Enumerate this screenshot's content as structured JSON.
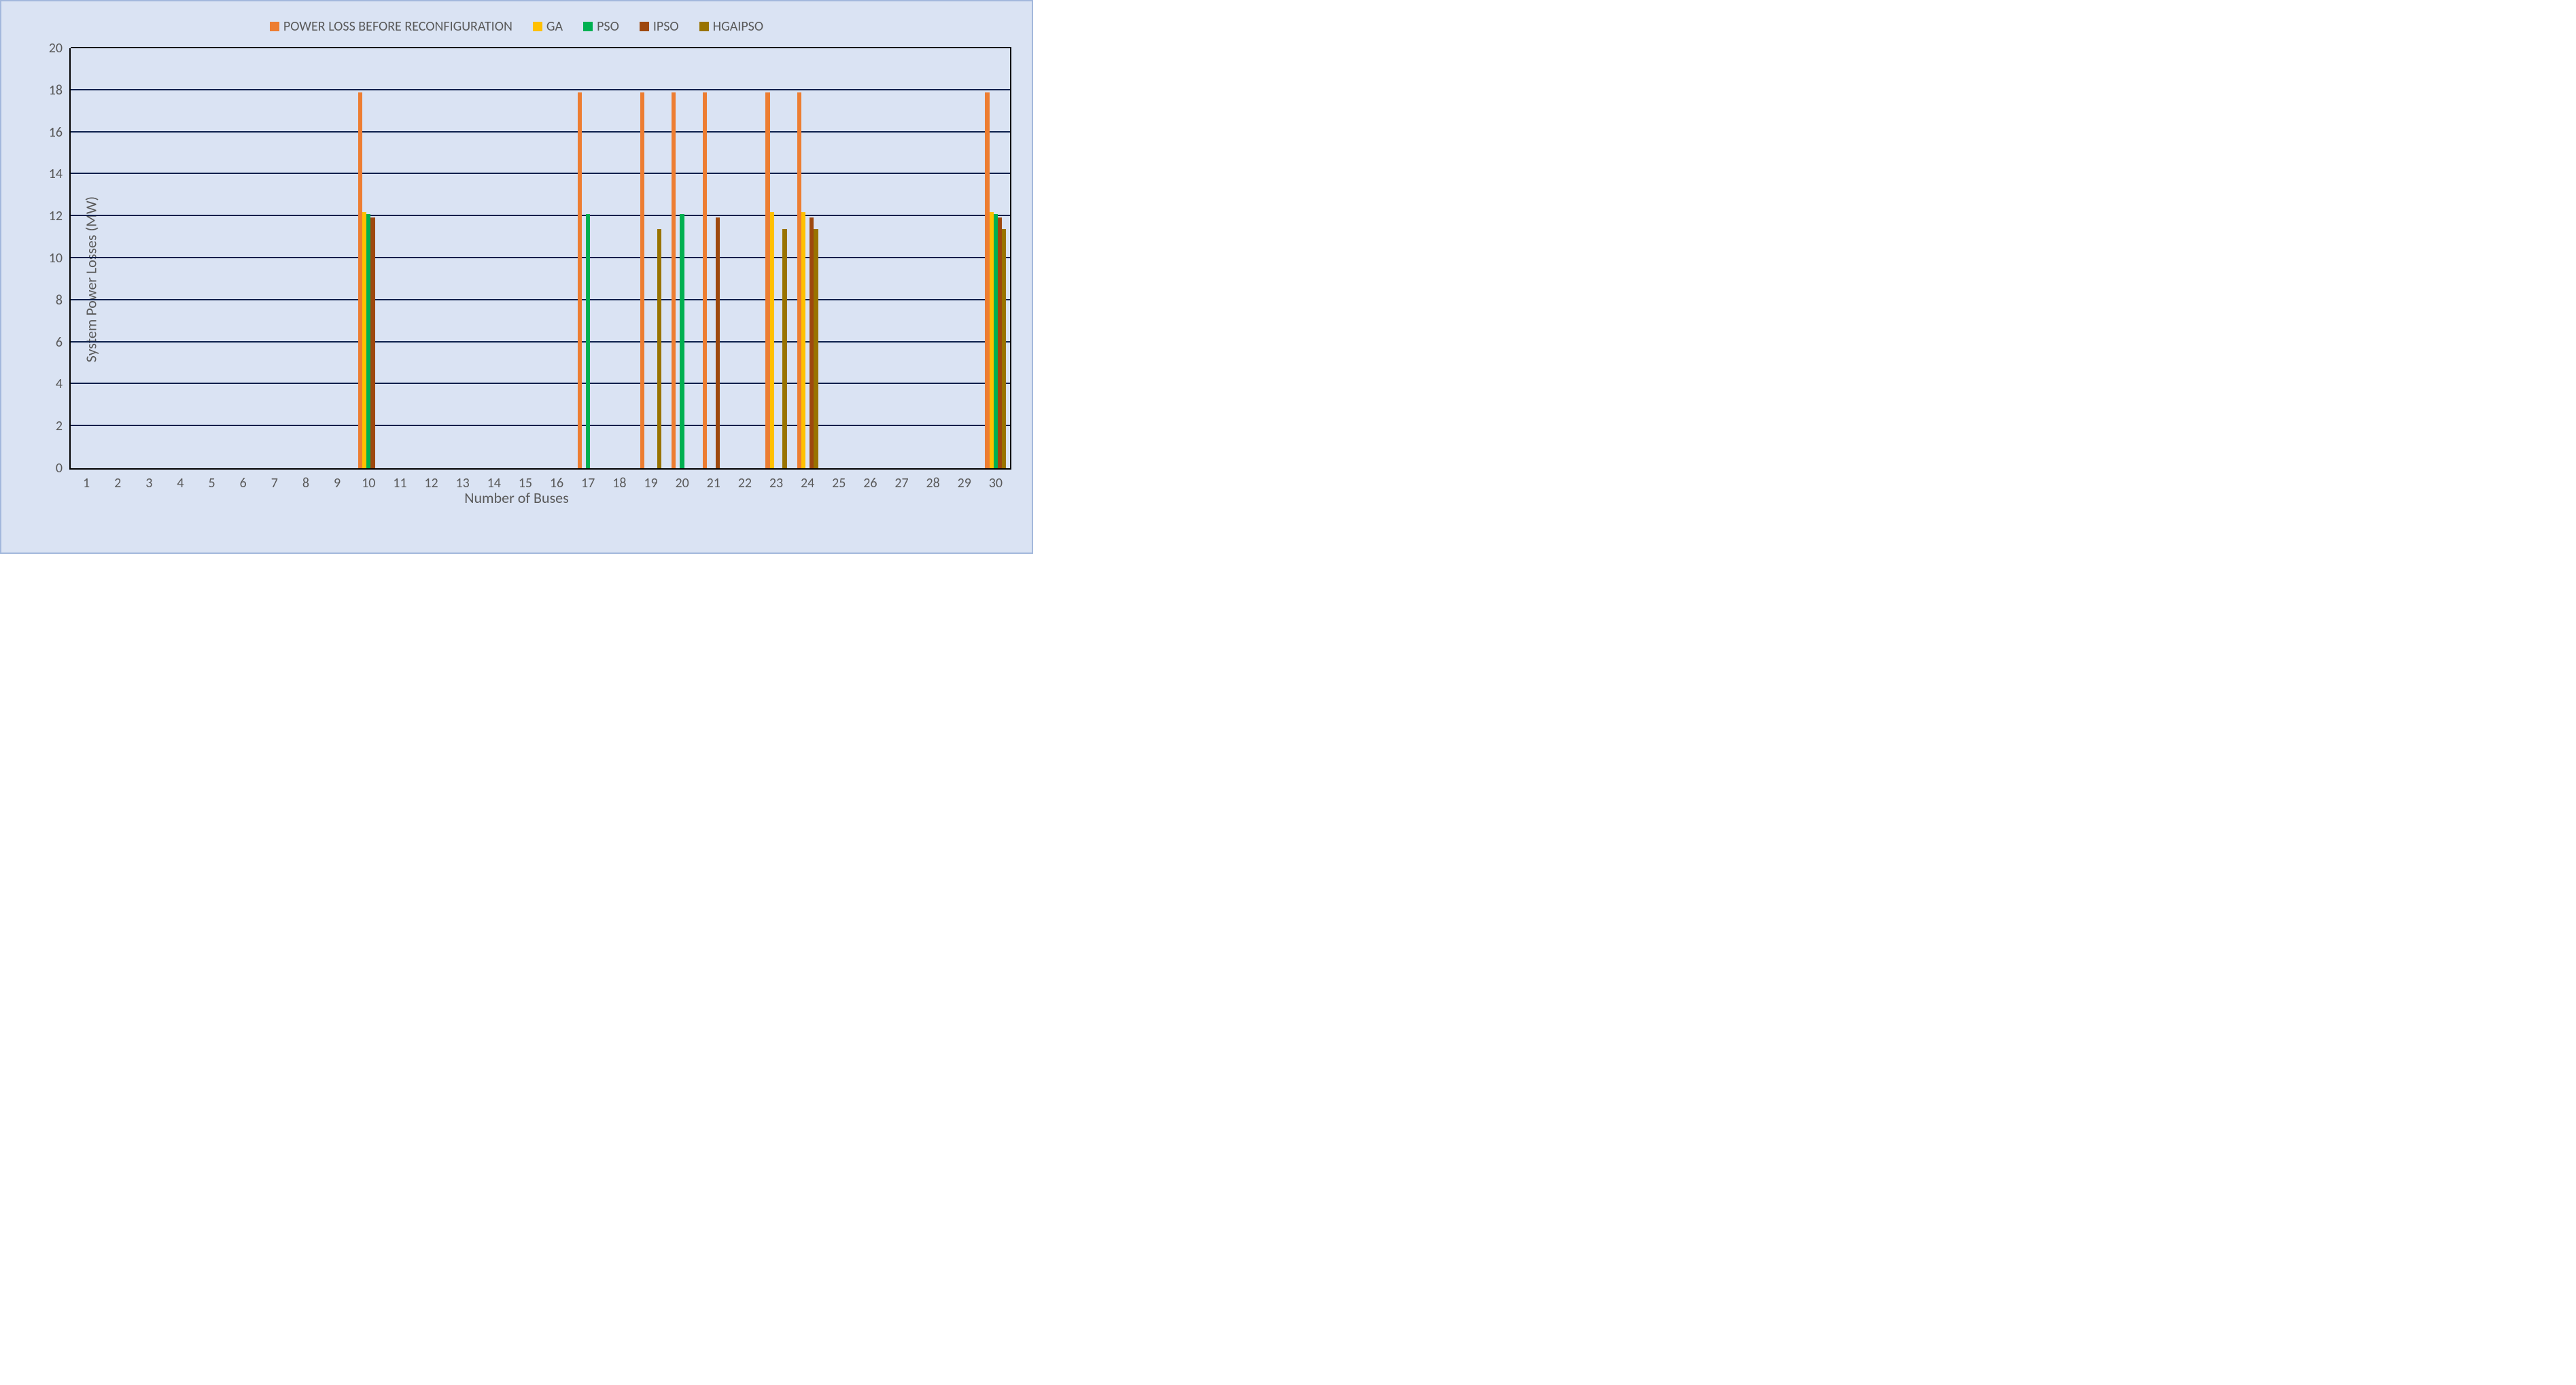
{
  "chart": {
    "type": "bar",
    "background_color": "#dae3f3",
    "outer_border_color": "#a3b8dc",
    "plot_border_color": "#000000",
    "grid_color": "#0b1f4b",
    "axis_label_color": "#595959",
    "legend_label_color": "#595959",
    "tick_label_color": "#595959",
    "xlabel": "Number of Buses",
    "ylabel": "System Power Losses (MW)",
    "ylim": [
      0,
      20
    ],
    "ytick_step": 2,
    "label_fontsize": 22,
    "tick_fontsize": 20,
    "legend_fontsize": 20,
    "bar_rel_width": 0.135,
    "categories": [
      "1",
      "2",
      "3",
      "4",
      "5",
      "6",
      "7",
      "8",
      "9",
      "10",
      "11",
      "12",
      "13",
      "14",
      "15",
      "16",
      "17",
      "18",
      "19",
      "20",
      "21",
      "22",
      "23",
      "24",
      "25",
      "26",
      "27",
      "28",
      "29",
      "30"
    ],
    "series": [
      {
        "label": "POWER LOSS BEFORE RECONFIGURATION",
        "color": "#ed7d31",
        "values": [
          0,
          0,
          0,
          0,
          0,
          0,
          0,
          0,
          0,
          17.9,
          0,
          0,
          0,
          0,
          0,
          0,
          17.9,
          0,
          17.9,
          17.9,
          17.9,
          0,
          17.9,
          17.9,
          0,
          0,
          0,
          0,
          0,
          17.9
        ]
      },
      {
        "label": "GA",
        "color": "#ffc000",
        "values": [
          0,
          0,
          0,
          0,
          0,
          0,
          0,
          0,
          0,
          12.2,
          0,
          0,
          0,
          0,
          0,
          0,
          0,
          0,
          0,
          0,
          0,
          0,
          12.2,
          12.2,
          0,
          0,
          0,
          0,
          0,
          12.2
        ]
      },
      {
        "label": "PSO",
        "color": "#00b050",
        "values": [
          0,
          0,
          0,
          0,
          0,
          0,
          0,
          0,
          0,
          12.1,
          0,
          0,
          0,
          0,
          0,
          0,
          12.1,
          0,
          0,
          12.1,
          0,
          0,
          0,
          0,
          0,
          0,
          0,
          0,
          0,
          12.1
        ]
      },
      {
        "label": "IPSO",
        "color": "#9e480e",
        "values": [
          0,
          0,
          0,
          0,
          0,
          0,
          0,
          0,
          0,
          11.95,
          0,
          0,
          0,
          0,
          0,
          0,
          0,
          0,
          0,
          0,
          11.95,
          0,
          0,
          11.95,
          0,
          0,
          0,
          0,
          0,
          11.95
        ]
      },
      {
        "label": "HGAIPSO",
        "color": "#997300",
        "values": [
          0,
          0,
          0,
          0,
          0,
          0,
          0,
          0,
          0,
          0,
          0,
          0,
          0,
          0,
          0,
          0,
          0,
          0,
          11.4,
          0,
          0,
          0,
          11.4,
          11.4,
          0,
          0,
          0,
          0,
          0,
          11.4
        ]
      }
    ]
  }
}
